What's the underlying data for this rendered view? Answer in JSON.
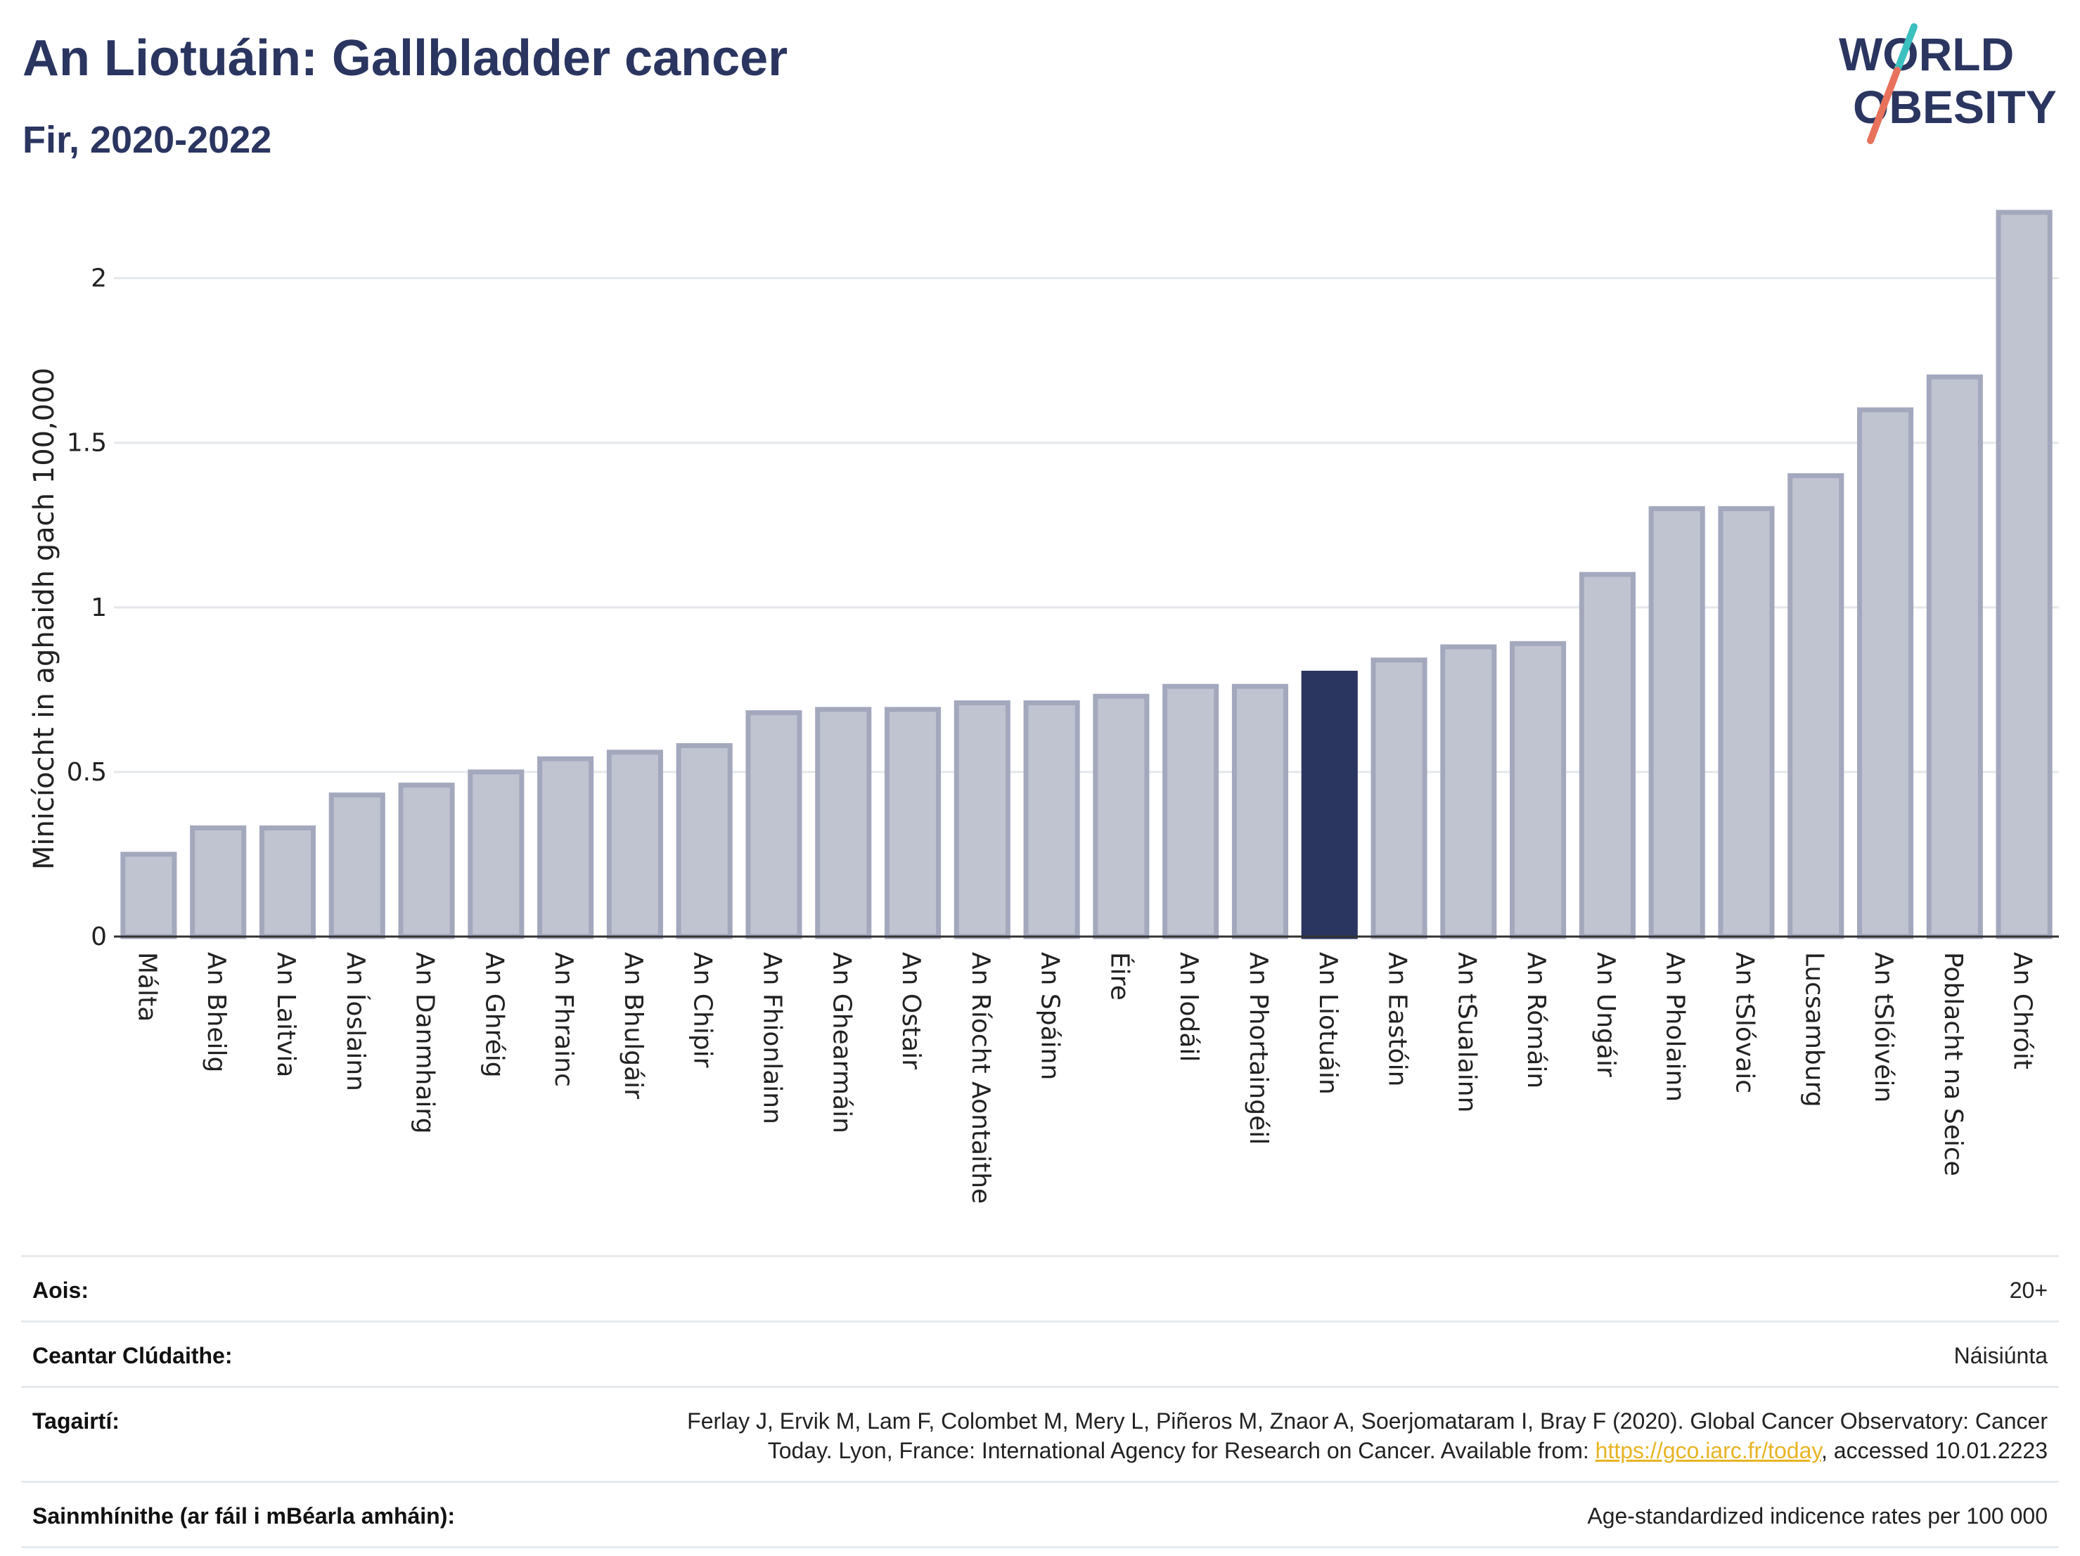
{
  "header": {
    "title": "An Liotuáin: Gallbladder cancer",
    "subtitle": "Fir, 2020-2022"
  },
  "logo": {
    "line1": "WORLD",
    "line2": "OBESITY",
    "colors": {
      "text": "#2a3560",
      "slash_top": "#3bbfbf",
      "slash_bottom": "#e8725c"
    }
  },
  "colors": {
    "bar_fill": "#c0c4d1",
    "bar_stroke": "#a3a8bd",
    "highlight": "#2a3560",
    "grid": "#e4e7eb",
    "axis": "#333333"
  },
  "chart_data": {
    "type": "bar",
    "title": "An Liotuáin: Gallbladder cancer",
    "ylabel": "Minicíocht in aghaidh gach 100,000",
    "xlabel": "",
    "ylim": [
      0,
      2.2
    ],
    "yticks": [
      0,
      0.5,
      1,
      1.5,
      2
    ],
    "ytick_labels": [
      "0",
      "0.5",
      "1",
      "1.5",
      "2"
    ],
    "highlight": "An Liotuáin",
    "grid": true,
    "categories": [
      "Málta",
      "An Bheilg",
      "An Laitvia",
      "An Íoslainn",
      "An Danmhairg",
      "An Ghréig",
      "An Fhrainc",
      "An Bhulgáir",
      "An Chipir",
      "An Fhionlainn",
      "An Ghearmáin",
      "An Ostair",
      "An Ríocht Aontaithe",
      "An Spáinn",
      "Éire",
      "An Iodáil",
      "An Phortaingéil",
      "An Liotuáin",
      "An Eastóin",
      "An tSualainn",
      "An Rómáin",
      "An Ungáir",
      "An Pholainn",
      "An tSlóvaic",
      "Lucsamburg",
      "An tSlóivéin",
      "Poblacht na Seice",
      "An Chróit"
    ],
    "values": [
      0.25,
      0.33,
      0.33,
      0.43,
      0.46,
      0.5,
      0.54,
      0.56,
      0.58,
      0.68,
      0.69,
      0.69,
      0.71,
      0.71,
      0.73,
      0.76,
      0.76,
      0.8,
      0.84,
      0.88,
      0.89,
      1.1,
      1.3,
      1.3,
      1.4,
      1.6,
      1.7,
      2.2
    ]
  },
  "info": {
    "age_label": "Aois:",
    "age_value": "20+",
    "coverage_label": "Ceantar Clúdaithe:",
    "coverage_value": "Náisiúnta",
    "refs_label": "Tagairtí:",
    "refs_line1": "Ferlay J, Ervik M, Lam F, Colombet M, Mery L, Piñeros M, Znaor A, Soerjomataram I, Bray F (2020). Global Cancer Observatory: Cancer",
    "refs_line2_pre": "Today. Lyon, France: International Agency for Research on Cancer. Available from: ",
    "refs_link": "https://gco.iarc.fr/today",
    "refs_line2_post": ", accessed 10.01.2223",
    "def_label": "Sainmhínithe (ar fáil i mBéarla amháin):",
    "def_value": "Age-standardized indicence rates per 100 000"
  }
}
